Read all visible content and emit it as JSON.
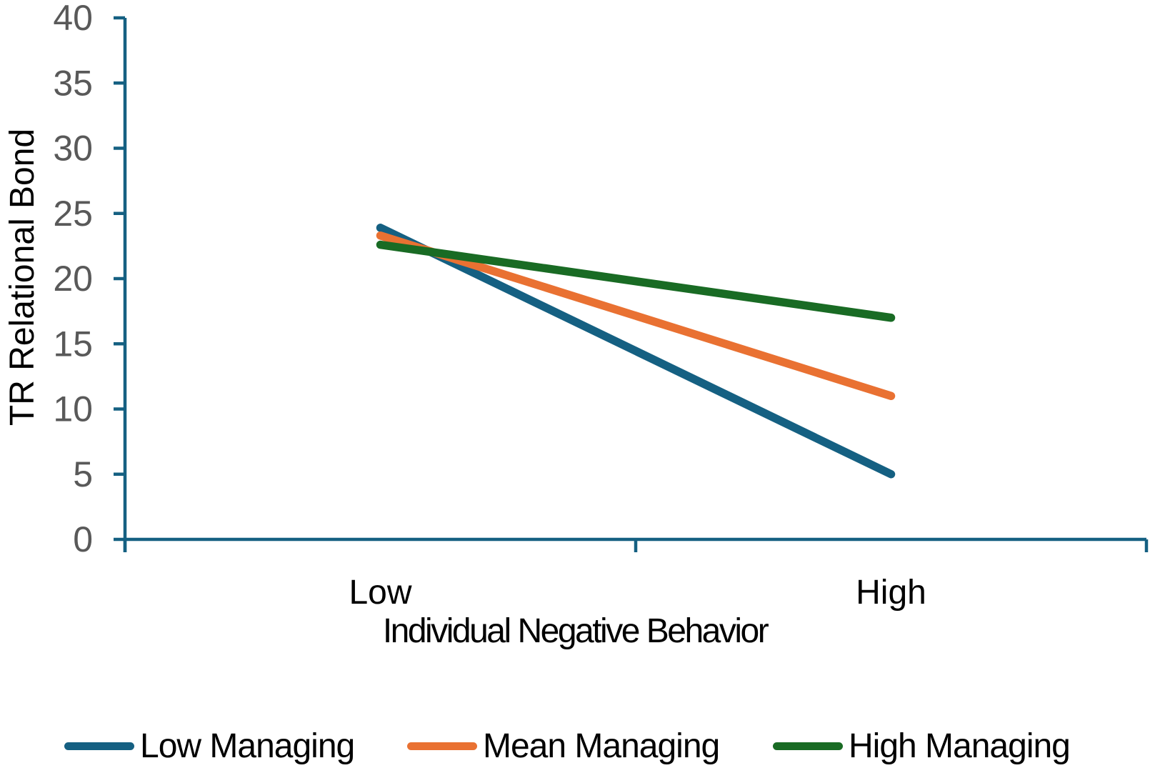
{
  "chart_data": {
    "type": "line",
    "xlabel": "Individual Negative Behavior",
    "ylabel": "TR Relational Bond",
    "categories": [
      "Low",
      "High"
    ],
    "series": [
      {
        "name": "Low Managing",
        "color": "#156082",
        "values": [
          23.9,
          5
        ]
      },
      {
        "name": "Mean Managing",
        "color": "#E97132",
        "values": [
          23.3,
          11
        ]
      },
      {
        "name": "High Managing",
        "color": "#196B24",
        "values": [
          22.6,
          17
        ]
      }
    ],
    "ylim": [
      0,
      40
    ],
    "y_ticks": [
      0,
      5,
      10,
      15,
      20,
      25,
      30,
      35,
      40
    ],
    "grid": false,
    "legend_position": "bottom",
    "axis_color": "#156082",
    "tick_label_color": "#595959",
    "text_color": "#000000"
  }
}
